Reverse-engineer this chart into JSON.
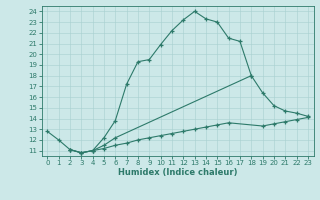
{
  "xlabel": "Humidex (Indice chaleur)",
  "background_color": "#cce8e8",
  "line_color": "#2d7a6a",
  "xlim": [
    -0.5,
    23.5
  ],
  "ylim": [
    10.5,
    24.5
  ],
  "xticks": [
    0,
    1,
    2,
    3,
    4,
    5,
    6,
    7,
    8,
    9,
    10,
    11,
    12,
    13,
    14,
    15,
    16,
    17,
    18,
    19,
    20,
    21,
    22,
    23
  ],
  "yticks": [
    11,
    12,
    13,
    14,
    15,
    16,
    17,
    18,
    19,
    20,
    21,
    22,
    23,
    24
  ],
  "line1_x": [
    0,
    1,
    2,
    3,
    4,
    5,
    6,
    7,
    8,
    9,
    10,
    11,
    12,
    13,
    14,
    15,
    16,
    17,
    18
  ],
  "line1_y": [
    12.8,
    12.0,
    11.1,
    10.8,
    11.0,
    12.2,
    13.8,
    17.2,
    19.3,
    19.5,
    20.9,
    22.2,
    23.2,
    24.0,
    23.3,
    23.0,
    21.5,
    21.2,
    18.0
  ],
  "line2_x": [
    2,
    3,
    4,
    5,
    6,
    18,
    19,
    20,
    21,
    22,
    23
  ],
  "line2_y": [
    11.1,
    10.8,
    11.0,
    11.5,
    12.2,
    18.0,
    16.4,
    15.2,
    14.7,
    14.5,
    14.2
  ],
  "line3_x": [
    2,
    3,
    4,
    5,
    6,
    7,
    8,
    9,
    10,
    11,
    12,
    13,
    14,
    15,
    16,
    19,
    20,
    21,
    22,
    23
  ],
  "line3_y": [
    11.1,
    10.8,
    11.0,
    11.2,
    11.5,
    11.7,
    12.0,
    12.2,
    12.4,
    12.6,
    12.8,
    13.0,
    13.2,
    13.4,
    13.6,
    13.3,
    13.5,
    13.7,
    13.9,
    14.1
  ]
}
